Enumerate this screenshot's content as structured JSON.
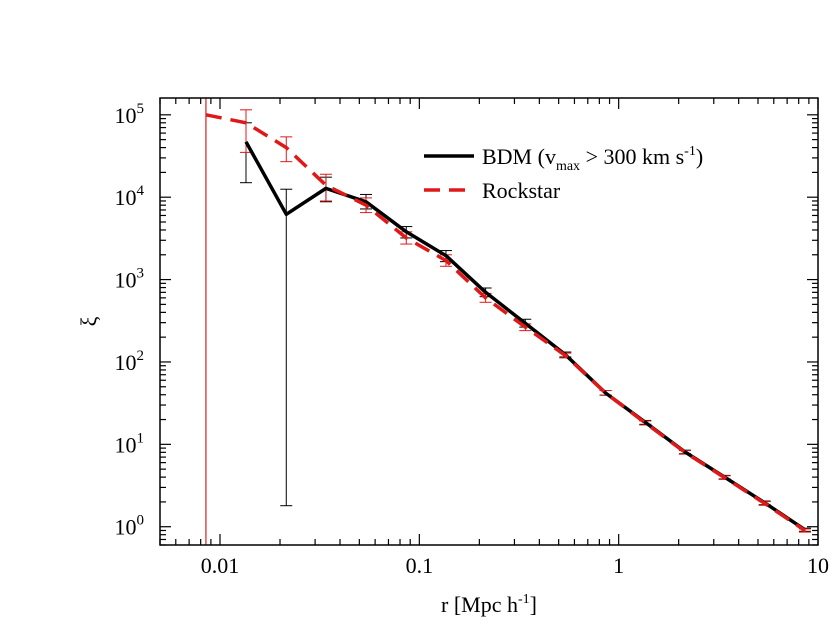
{
  "chart_data": {
    "type": "line",
    "title": "",
    "xlabel": "r [Mpc h",
    "xlabel_sup": "-1",
    "xlabel_close": "]",
    "ylabel": "ξ",
    "xscale": "log",
    "yscale": "log",
    "xlim": [
      0.005,
      10
    ],
    "ylim": [
      0.6,
      160000
    ],
    "x_ticks": [
      {
        "value": 0.01,
        "label": "0.01"
      },
      {
        "value": 0.1,
        "label": "0.1"
      },
      {
        "value": 1,
        "label": "1"
      },
      {
        "value": 10,
        "label": "10"
      }
    ],
    "y_ticks": [
      {
        "value": 1,
        "base": "10",
        "exp": "0"
      },
      {
        "value": 10,
        "base": "10",
        "exp": "1"
      },
      {
        "value": 100,
        "base": "10",
        "exp": "2"
      },
      {
        "value": 1000,
        "base": "10",
        "exp": "3"
      },
      {
        "value": 10000,
        "base": "10",
        "exp": "4"
      },
      {
        "value": 100000,
        "base": "10",
        "exp": "5"
      }
    ],
    "vertical_line": {
      "x": 0.0085,
      "color": "#d62020"
    },
    "legend_position": "top-right",
    "series": [
      {
        "name": "BDM (v",
        "name_sub": "max",
        "name_mid": " > 300 km s",
        "name_sup": "-1",
        "name_end": ")",
        "color": "#000000",
        "style": "solid",
        "x": [
          0.0135,
          0.0215,
          0.034,
          0.054,
          0.086,
          0.136,
          0.215,
          0.34,
          0.54,
          0.86,
          1.36,
          2.15,
          3.4,
          5.4,
          8.6
        ],
        "y": [
          47000,
          6200,
          12800,
          8800,
          3800,
          1950,
          700,
          295,
          123,
          42,
          18.5,
          8.1,
          4.0,
          1.95,
          0.92
        ],
        "err_low": [
          15000,
          1.8,
          8800,
          7200,
          3200,
          1650,
          620,
          265,
          115,
          39.5,
          17.5,
          7.7,
          3.8,
          1.85,
          0.88
        ],
        "err_high": [
          80000,
          12500,
          17500,
          10800,
          4400,
          2250,
          790,
          330,
          132,
          45,
          19.5,
          8.5,
          4.2,
          2.05,
          0.96
        ]
      },
      {
        "name": "Rockstar",
        "color": "#e01818",
        "style": "dashed",
        "x": [
          0.0085,
          0.0135,
          0.0215,
          0.034,
          0.054,
          0.086,
          0.136,
          0.215,
          0.34,
          0.54,
          0.86,
          1.36,
          2.15,
          3.4,
          5.4,
          8.6
        ],
        "y": [
          100000,
          80000,
          40000,
          14000,
          8000,
          3200,
          1700,
          600,
          265,
          120,
          42,
          18.2,
          8.0,
          3.95,
          1.92,
          0.9
        ],
        "err_low": [
          null,
          35000,
          27000,
          9000,
          6500,
          2700,
          1450,
          530,
          240,
          112,
          39.5,
          17.2,
          7.6,
          3.75,
          1.82,
          0.86
        ],
        "err_high": [
          null,
          115000,
          54000,
          19000,
          9800,
          3800,
          2000,
          680,
          290,
          128,
          45,
          19.2,
          8.4,
          4.15,
          2.02,
          0.94
        ]
      }
    ]
  }
}
